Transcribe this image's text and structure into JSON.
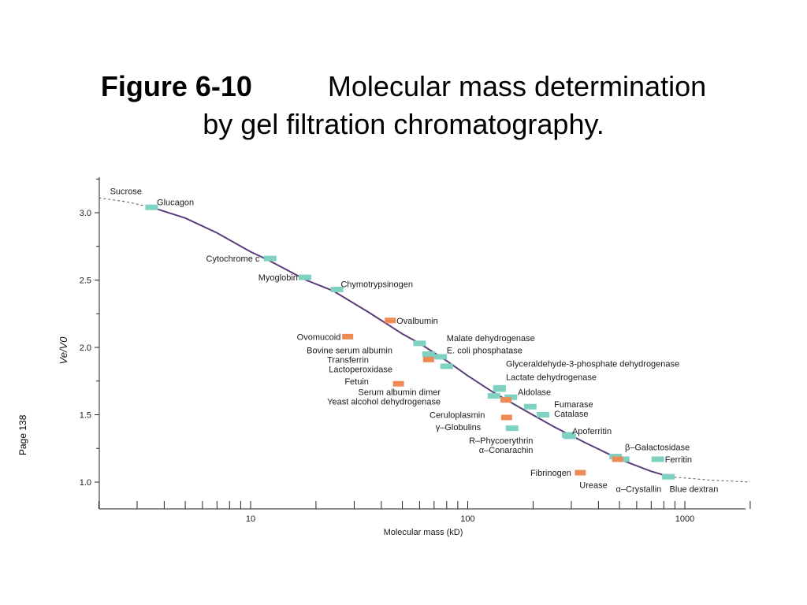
{
  "title": {
    "figure_label": "Figure 6-10",
    "line1": "Molecular mass determination",
    "line2": "by gel filtration chromatography."
  },
  "page_label": "Page 138",
  "colors": {
    "curve": "#5a3d7a",
    "teal_marker": "#7fd1c2",
    "orange_marker": "#ee8a55",
    "axis": "#222222"
  },
  "chart_data": {
    "type": "scatter",
    "xlabel": "Molecular mass (kD)",
    "ylabel": "Ve/V0",
    "xscale": "log",
    "xlim": [
      2,
      2000
    ],
    "ylim": [
      0.85,
      3.25
    ],
    "xticks": [
      "10",
      "100",
      "1000"
    ],
    "yticks": [
      "1.0",
      "1.5",
      "2.0",
      "2.5",
      "3.0"
    ],
    "curve": {
      "x": [
        3.5,
        5,
        7,
        10,
        12,
        18,
        24,
        35,
        50,
        60,
        80,
        100,
        130,
        180,
        250,
        350,
        500,
        700,
        850
      ],
      "y": [
        3.04,
        2.96,
        2.85,
        2.71,
        2.65,
        2.5,
        2.42,
        2.26,
        2.1,
        2.03,
        1.9,
        1.79,
        1.67,
        1.54,
        1.41,
        1.29,
        1.17,
        1.08,
        1.04
      ]
    },
    "dashed_tails": [
      {
        "x": [
          2,
          2.7,
          3.5
        ],
        "y": [
          3.11,
          3.08,
          3.04
        ]
      },
      {
        "x": [
          850,
          1300,
          2000
        ],
        "y": [
          1.04,
          1.015,
          1.0
        ]
      }
    ],
    "points": [
      {
        "name": "Sucrose",
        "x": null,
        "y": null,
        "color": "none",
        "label_x": 0.34,
        "label_y": 3.16
      },
      {
        "name": "Glucagon",
        "x": 3.5,
        "y": 3.04,
        "color": "teal",
        "label_x": 3.7,
        "label_y": 3.08
      },
      {
        "name": "Cytochrome c",
        "x": 12.3,
        "y": 2.66,
        "color": "teal",
        "label_x": 11.0,
        "label_y": 2.66
      },
      {
        "name": "Myoglobin",
        "x": 17.8,
        "y": 2.52,
        "color": "teal",
        "label_x": 16.5,
        "label_y": 2.52
      },
      {
        "name": "Chymotrypsinogen",
        "x": 25,
        "y": 2.43,
        "color": "teal",
        "label_x": 26,
        "label_y": 2.47
      },
      {
        "name": "Ovalbumin",
        "x": 44,
        "y": 2.2,
        "color": "orange",
        "label_x": 47,
        "label_y": 2.2
      },
      {
        "name": "Ovomucoid",
        "x": 28,
        "y": 2.08,
        "color": "orange",
        "label_x": 26,
        "label_y": 2.08
      },
      {
        "name": "Malate dehydrogenase",
        "x": 60,
        "y": 2.03,
        "color": "teal",
        "label_x": 80,
        "label_y": 2.07
      },
      {
        "name": "Bovine serum albumin",
        "x": 66,
        "y": 1.95,
        "color": "teal",
        "label_x": 45,
        "label_y": 1.98
      },
      {
        "name": "E. coli phosphatase",
        "x": 75,
        "y": 1.93,
        "color": "teal",
        "label_x": 80,
        "label_y": 1.98
      },
      {
        "name": "Transferrin",
        "x": 66,
        "y": 1.91,
        "color": "orange",
        "label_x": 35,
        "label_y": 1.91
      },
      {
        "name": "Lactoperoxidase",
        "x": 80,
        "y": 1.86,
        "color": "teal",
        "label_x": 45,
        "label_y": 1.84
      },
      {
        "name": "Glyceraldehyde-3-phosphate dehydrogenase",
        "x": 140,
        "y": 1.7,
        "color": "teal",
        "label_x": 150,
        "label_y": 1.88
      },
      {
        "name": "Fetuin",
        "x": 48,
        "y": 1.73,
        "color": "orange",
        "label_x": 35,
        "label_y": 1.75
      },
      {
        "name": "Lactate dehydrogenase",
        "x": 140,
        "y": 1.69,
        "color": "teal",
        "label_x": 150,
        "label_y": 1.78
      },
      {
        "name": "Serum albumin dimer",
        "x": 132,
        "y": 1.64,
        "color": "teal",
        "label_x": 75,
        "label_y": 1.67
      },
      {
        "name": "Aldolase",
        "x": 158,
        "y": 1.63,
        "color": "teal",
        "label_x": 170,
        "label_y": 1.67
      },
      {
        "name": "Yeast alcohol dehydrogenase",
        "x": 150,
        "y": 1.61,
        "color": "orange",
        "label_x": 75,
        "label_y": 1.6
      },
      {
        "name": "Fumarase",
        "x": 194,
        "y": 1.56,
        "color": "teal",
        "label_x": 250,
        "label_y": 1.58
      },
      {
        "name": "Catalase",
        "x": 222,
        "y": 1.5,
        "color": "teal",
        "label_x": 250,
        "label_y": 1.51
      },
      {
        "name": "Ceruloplasmin",
        "x": 151,
        "y": 1.48,
        "color": "orange",
        "label_x": 120,
        "label_y": 1.5
      },
      {
        "name": "γ–Globulins",
        "x": 160,
        "y": 1.4,
        "color": "teal",
        "label_x": 115,
        "label_y": 1.41
      },
      {
        "name": "R–Phycoerythrin",
        "x": 290,
        "y": 1.35,
        "color": "teal",
        "label_x": 200,
        "label_y": 1.31
      },
      {
        "name": "α–Conarachin",
        "x": 295,
        "y": 1.34,
        "color": "teal",
        "label_x": 200,
        "label_y": 1.24
      },
      {
        "name": "Apoferritin",
        "x": 480,
        "y": 1.19,
        "color": "teal",
        "label_x": 460,
        "label_y": 1.38
      },
      {
        "name": "β–Galactosidase",
        "x": 520,
        "y": 1.17,
        "color": "teal",
        "label_x": 530,
        "label_y": 1.26
      },
      {
        "name": "Ferritin",
        "x": 750,
        "y": 1.17,
        "color": "teal",
        "label_x": 810,
        "label_y": 1.17
      },
      {
        "name": "Fibrinogen",
        "x": 330,
        "y": 1.07,
        "color": "orange",
        "label_x": 300,
        "label_y": 1.07
      },
      {
        "name": "Urease",
        "x": 490,
        "y": 1.17,
        "color": "orange",
        "label_x": 440,
        "label_y": 0.98
      },
      {
        "name": "α–Crystallin",
        "x": 840,
        "y": 1.04,
        "color": "teal",
        "label_x": 780,
        "label_y": 0.95
      },
      {
        "name": "Blue dextran",
        "x": null,
        "y": null,
        "color": "none",
        "label_x": 850,
        "label_y": 0.95
      }
    ]
  }
}
